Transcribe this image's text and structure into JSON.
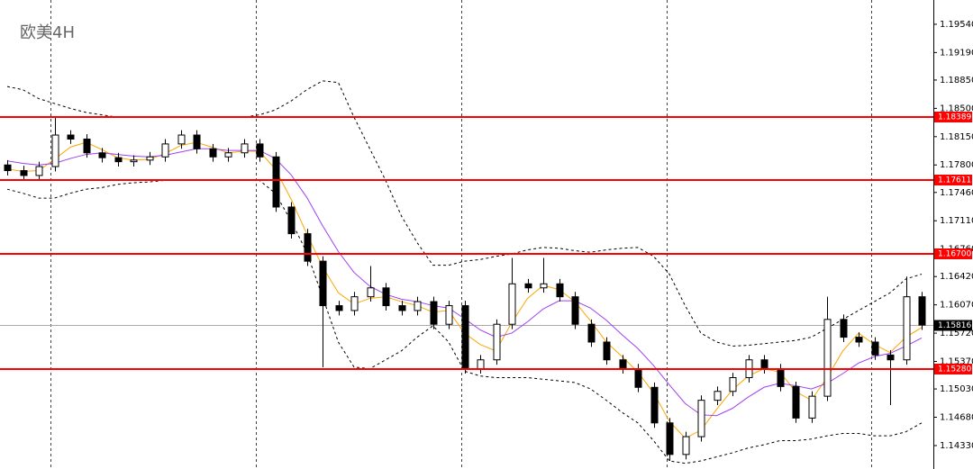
{
  "chart_data": {
    "type": "candlestick",
    "title": "欧美4H",
    "ylim": [
      1.1404,
      1.1984
    ],
    "yticks": [
      {
        "value": 1.1954,
        "label": "1.19540"
      },
      {
        "value": 1.1919,
        "label": "1.19190"
      },
      {
        "value": 1.1885,
        "label": "1.18850"
      },
      {
        "value": 1.185,
        "label": "1.18500"
      },
      {
        "value": 1.1815,
        "label": "1.18150"
      },
      {
        "value": 1.178,
        "label": "1.17800"
      },
      {
        "value": 1.1746,
        "label": "1.17460"
      },
      {
        "value": 1.1711,
        "label": "1.17110"
      },
      {
        "value": 1.1676,
        "label": "1.16760"
      },
      {
        "value": 1.1642,
        "label": "1.16420"
      },
      {
        "value": 1.1607,
        "label": "1.16070"
      },
      {
        "value": 1.1572,
        "label": "1.15720"
      },
      {
        "value": 1.1537,
        "label": "1.15370"
      },
      {
        "value": 1.1503,
        "label": "1.15030"
      },
      {
        "value": 1.1468,
        "label": "1.14680"
      },
      {
        "value": 1.1433,
        "label": "1.14330"
      }
    ],
    "up_color": "#ffffff",
    "down_color": "#000000",
    "open": [
      1.178,
      1.1773,
      1.1767,
      1.1778,
      1.1817,
      1.1812,
      1.1795,
      1.1789,
      1.1784,
      1.1786,
      1.179,
      1.1806,
      1.1817,
      1.18,
      1.179,
      1.1795,
      1.1806,
      1.179,
      1.1728,
      1.1695,
      1.1661,
      1.1606,
      1.16,
      1.1617,
      1.1628,
      1.1606,
      1.16,
      1.1611,
      1.1583,
      1.1606,
      1.1528,
      1.1539,
      1.1583,
      1.1633,
      1.1628,
      1.1633,
      1.1617,
      1.1583,
      1.1561,
      1.1539,
      1.1528,
      1.1505,
      1.1461,
      1.1422,
      1.1444,
      1.1489,
      1.15,
      1.1517,
      1.1539,
      1.1528,
      1.1506,
      1.1467,
      1.1494,
      1.1589,
      1.1567,
      1.1561,
      1.1545,
      1.1539,
      1.1617
    ],
    "high": [
      1.1786,
      1.1779,
      1.1784,
      1.1838,
      1.1823,
      1.1818,
      1.1801,
      1.1795,
      1.1792,
      1.1796,
      1.1812,
      1.1823,
      1.1823,
      1.1806,
      1.1801,
      1.1812,
      1.1812,
      1.1796,
      1.1734,
      1.1701,
      1.1667,
      1.1612,
      1.1623,
      1.1655,
      1.1634,
      1.1612,
      1.1617,
      1.1617,
      1.1612,
      1.1612,
      1.1545,
      1.1589,
      1.1665,
      1.1639,
      1.1665,
      1.1639,
      1.1623,
      1.1589,
      1.1567,
      1.1545,
      1.1534,
      1.1511,
      1.1467,
      1.145,
      1.1495,
      1.1506,
      1.1523,
      1.1545,
      1.1545,
      1.1534,
      1.1512,
      1.15,
      1.1617,
      1.1595,
      1.1573,
      1.1567,
      1.1551,
      1.1642,
      1.1623
    ],
    "low": [
      1.1767,
      1.1761,
      1.1761,
      1.1772,
      1.1806,
      1.1789,
      1.1783,
      1.1778,
      1.1778,
      1.178,
      1.1784,
      1.18,
      1.1794,
      1.1784,
      1.1784,
      1.1789,
      1.1784,
      1.1722,
      1.1689,
      1.1655,
      1.153,
      1.1594,
      1.1594,
      1.1611,
      1.16,
      1.1594,
      1.1594,
      1.1577,
      1.1577,
      1.1522,
      1.1522,
      1.1533,
      1.1577,
      1.1622,
      1.1622,
      1.1611,
      1.1577,
      1.1555,
      1.1533,
      1.1522,
      1.1499,
      1.1455,
      1.1414,
      1.1416,
      1.1438,
      1.1483,
      1.1494,
      1.1511,
      1.1522,
      1.15,
      1.1461,
      1.1461,
      1.1488,
      1.1561,
      1.1555,
      1.1539,
      1.1483,
      1.1533,
      1.1576
    ],
    "close": [
      1.1773,
      1.1767,
      1.1778,
      1.1817,
      1.1812,
      1.1795,
      1.1789,
      1.1784,
      1.1786,
      1.179,
      1.1806,
      1.1817,
      1.18,
      1.179,
      1.1795,
      1.1806,
      1.179,
      1.1728,
      1.1695,
      1.1661,
      1.1606,
      1.16,
      1.1617,
      1.1628,
      1.1606,
      1.16,
      1.1611,
      1.1583,
      1.1606,
      1.1528,
      1.1539,
      1.1583,
      1.1633,
      1.1628,
      1.1633,
      1.1617,
      1.1583,
      1.1561,
      1.1539,
      1.1528,
      1.1505,
      1.1461,
      1.1422,
      1.1444,
      1.1489,
      1.15,
      1.1517,
      1.1539,
      1.1528,
      1.1506,
      1.1467,
      1.1494,
      1.1589,
      1.1567,
      1.1561,
      1.1545,
      1.1539,
      1.1617,
      1.1582
    ],
    "lines": [
      {
        "color": "#000000",
        "style": "dashed",
        "values": [
          1.1877,
          1.1873,
          1.1862,
          1.1856,
          1.185,
          1.1845,
          1.1842,
          1.1839,
          1.1839,
          1.1839,
          1.1839,
          1.1839,
          1.1839,
          1.1839,
          1.1839,
          1.1839,
          1.1842,
          1.1848,
          1.1859,
          1.1873,
          1.1884,
          1.1882,
          1.1839,
          1.18,
          1.1761,
          1.1717,
          1.1684,
          1.1656,
          1.1656,
          1.1661,
          1.1663,
          1.1667,
          1.167,
          1.1675,
          1.1678,
          1.1677,
          1.1674,
          1.1672,
          1.1675,
          1.1677,
          1.1678,
          1.1667,
          1.1645,
          1.1606,
          1.1572,
          1.1561,
          1.1556,
          1.1557,
          1.1559,
          1.1561,
          1.1563,
          1.1567,
          1.1578,
          1.1589,
          1.16,
          1.1611,
          1.1622,
          1.1639,
          1.1645
        ]
      },
      {
        "color": "#000000",
        "style": "dashed",
        "values": [
          1.175,
          1.1745,
          1.1739,
          1.1739,
          1.1745,
          1.175,
          1.1752,
          1.1756,
          1.1758,
          1.1759,
          1.1761,
          1.1761,
          1.1761,
          1.1761,
          1.1761,
          1.1761,
          1.1761,
          1.1745,
          1.1711,
          1.1672,
          1.1617,
          1.1561,
          1.153,
          1.1528,
          1.1539,
          1.155,
          1.1567,
          1.1581,
          1.1561,
          1.1525,
          1.1519,
          1.1517,
          1.1517,
          1.1517,
          1.1515,
          1.1513,
          1.1511,
          1.1503,
          1.1489,
          1.1474,
          1.1461,
          1.1439,
          1.1414,
          1.1411,
          1.1414,
          1.1419,
          1.1424,
          1.143,
          1.1434,
          1.1439,
          1.1439,
          1.1441,
          1.1445,
          1.1448,
          1.1448,
          1.1445,
          1.1445,
          1.145,
          1.1461
        ]
      },
      {
        "color": "#ffa500",
        "style": "solid",
        "values": [
          1.1775,
          1.1772,
          1.1773,
          1.1787,
          1.1802,
          1.1808,
          1.1799,
          1.1789,
          1.1786,
          1.1787,
          1.1794,
          1.1804,
          1.1808,
          1.1802,
          1.1795,
          1.1797,
          1.1797,
          1.1775,
          1.1738,
          1.1695,
          1.1654,
          1.1622,
          1.1608,
          1.1615,
          1.1617,
          1.1611,
          1.1606,
          1.1598,
          1.16,
          1.1572,
          1.1558,
          1.155,
          1.1585,
          1.1615,
          1.1631,
          1.1626,
          1.1611,
          1.1587,
          1.1561,
          1.1543,
          1.1524,
          1.1498,
          1.1463,
          1.1442,
          1.1452,
          1.1478,
          1.1502,
          1.1519,
          1.1528,
          1.1524,
          1.15,
          1.1489,
          1.1517,
          1.155,
          1.1572,
          1.1558,
          1.1548,
          1.1567,
          1.1579
        ]
      },
      {
        "color": "#a040f0",
        "style": "solid",
        "values": [
          1.1785,
          1.1782,
          1.178,
          1.1782,
          1.1788,
          1.1793,
          1.1795,
          1.1793,
          1.1791,
          1.179,
          1.1792,
          1.1796,
          1.18,
          1.18,
          1.1798,
          1.1798,
          1.1798,
          1.1788,
          1.1768,
          1.174,
          1.1705,
          1.1673,
          1.1647,
          1.163,
          1.162,
          1.1614,
          1.1611,
          1.1606,
          1.1603,
          1.159,
          1.1576,
          1.1567,
          1.1572,
          1.1586,
          1.1602,
          1.1612,
          1.1612,
          1.1603,
          1.1588,
          1.157,
          1.1553,
          1.1532,
          1.1508,
          1.1485,
          1.1471,
          1.147,
          1.1479,
          1.1493,
          1.1505,
          1.151,
          1.1507,
          1.1503,
          1.151,
          1.1522,
          1.1535,
          1.1543,
          1.1547,
          1.1556,
          1.1566
        ]
      }
    ],
    "level_color": "#ff0000",
    "levels": [
      {
        "value": 1.18389,
        "label": "1.18389"
      },
      {
        "value": 1.17611,
        "label": "1.17611"
      },
      {
        "value": 1.167,
        "label": "1.16700"
      },
      {
        "value": 1.1528,
        "label": "1.15280"
      }
    ],
    "current_price": {
      "value": 1.15816,
      "label": "1.15816"
    }
  }
}
